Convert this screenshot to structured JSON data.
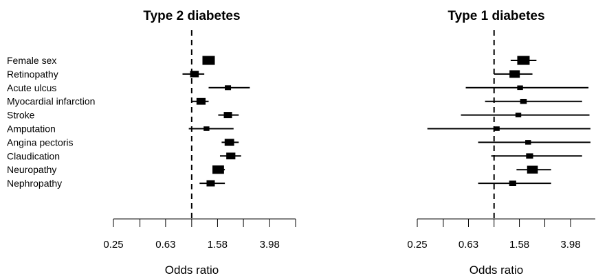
{
  "chart_data": [
    {
      "type": "forest",
      "title": "Type 2 diabetes",
      "xlabel": "Odds ratio",
      "x_scale": "log",
      "xlim": [
        0.25,
        6.3
      ],
      "reference_line": 1,
      "tick_values": [
        0.25,
        0.4,
        0.63,
        1,
        1.58,
        2.5,
        3.98,
        6.3
      ],
      "tick_labels": [
        {
          "value": 0.25,
          "label": "0.25"
        },
        {
          "value": 0.63,
          "label": "0.63"
        },
        {
          "value": 1.58,
          "label": "1.58"
        },
        {
          "value": 3.98,
          "label": "3.98"
        }
      ],
      "rows": [
        {
          "label": "Female sex",
          "or": 1.35,
          "lo": 1.28,
          "hi": 1.45,
          "weight": 1.0
        },
        {
          "label": "Retinopathy",
          "or": 1.05,
          "lo": 0.85,
          "hi": 1.25,
          "weight": 0.55
        },
        {
          "label": "Acute ulcus",
          "or": 1.9,
          "lo": 1.35,
          "hi": 2.8,
          "weight": 0.25
        },
        {
          "label": "Myocardial infarction",
          "or": 1.18,
          "lo": 1.0,
          "hi": 1.35,
          "weight": 0.6
        },
        {
          "label": "Stroke",
          "or": 1.9,
          "lo": 1.6,
          "hi": 2.3,
          "weight": 0.5
        },
        {
          "label": "Amputation",
          "or": 1.3,
          "lo": 0.95,
          "hi": 2.1,
          "weight": 0.2
        },
        {
          "label": "Angina pectoris",
          "or": 1.95,
          "lo": 1.7,
          "hi": 2.3,
          "weight": 0.65
        },
        {
          "label": "Claudication",
          "or": 2.0,
          "lo": 1.65,
          "hi": 2.4,
          "weight": 0.6
        },
        {
          "label": "Neuropathy",
          "or": 1.6,
          "lo": 1.5,
          "hi": 1.8,
          "weight": 0.9
        },
        {
          "label": "Nephropathy",
          "or": 1.4,
          "lo": 1.15,
          "hi": 1.8,
          "weight": 0.5
        }
      ]
    },
    {
      "type": "forest",
      "title": "Type 1 diabetes",
      "xlabel": "Odds ratio",
      "x_scale": "log",
      "xlim": [
        0.25,
        6.3
      ],
      "reference_line": 1,
      "tick_values": [
        0.25,
        0.4,
        0.63,
        1,
        1.58,
        2.5,
        3.98,
        6.3
      ],
      "tick_labels": [
        {
          "value": 0.25,
          "label": "0.25"
        },
        {
          "value": 0.63,
          "label": "0.63"
        },
        {
          "value": 1.58,
          "label": "1.58"
        },
        {
          "value": 3.98,
          "label": "3.98"
        }
      ],
      "rows": [
        {
          "label": "Female sex",
          "or": 1.7,
          "lo": 1.35,
          "hi": 2.15,
          "weight": 1.0
        },
        {
          "label": "Retinopathy",
          "or": 1.45,
          "lo": 1.0,
          "hi": 2.0,
          "weight": 0.75
        },
        {
          "label": "Acute ulcus",
          "or": 1.6,
          "lo": 0.6,
          "hi": 5.5,
          "weight": 0.2
        },
        {
          "label": "Myocardial infarction",
          "or": 1.7,
          "lo": 0.85,
          "hi": 4.9,
          "weight": 0.3
        },
        {
          "label": "Stroke",
          "or": 1.55,
          "lo": 0.55,
          "hi": 5.6,
          "weight": 0.2
        },
        {
          "label": "Amputation",
          "or": 1.05,
          "lo": 0.3,
          "hi": 5.7,
          "weight": 0.2
        },
        {
          "label": "Angina pectoris",
          "or": 1.85,
          "lo": 0.75,
          "hi": 5.7,
          "weight": 0.2
        },
        {
          "label": "Claudication",
          "or": 1.9,
          "lo": 0.95,
          "hi": 4.9,
          "weight": 0.35
        },
        {
          "label": "Neuropathy",
          "or": 2.0,
          "lo": 1.5,
          "hi": 2.8,
          "weight": 0.8
        },
        {
          "label": "Nephropathy",
          "or": 1.4,
          "lo": 0.75,
          "hi": 2.8,
          "weight": 0.35
        }
      ]
    }
  ]
}
